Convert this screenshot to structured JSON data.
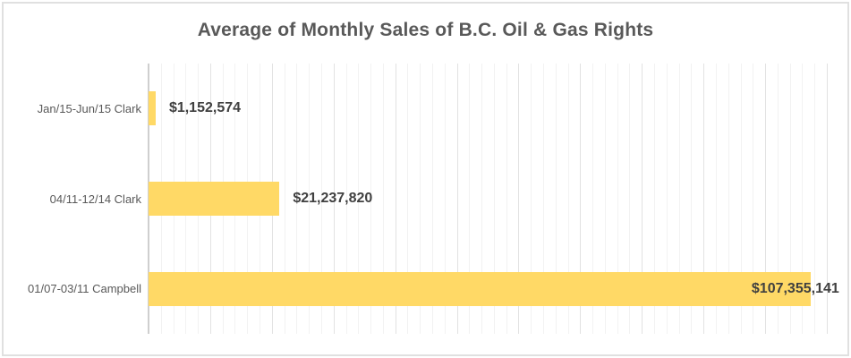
{
  "chart_data": {
    "type": "bar",
    "orientation": "horizontal",
    "title": "Average of Monthly Sales of B.C. Oil & Gas Rights",
    "categories": [
      "Jan/15-Jun/15 Clark",
      "04/11-12/14 Clark",
      "01/07-03/11 Campbell"
    ],
    "values": [
      1152574,
      21237820,
      107355141
    ],
    "value_labels": [
      "$1,152,574",
      "$21,237,820",
      "$107,355,141"
    ],
    "xlim": [
      0,
      110000000
    ],
    "major_unit": 10000000,
    "minor_unit": 2000000,
    "grid": true,
    "legend_position": "none",
    "value_axis_tick_labels_visible": false,
    "colors": {
      "bar": "#FFD966",
      "title": "#595959",
      "category_label": "#595959",
      "value_label": "#404040",
      "gridline_minor": "#F2F2F2",
      "gridline_major": "#E2E2E2",
      "axis_line": "#CFCFCF",
      "border": "#E0E0E0",
      "background": "#FFFFFF"
    }
  }
}
